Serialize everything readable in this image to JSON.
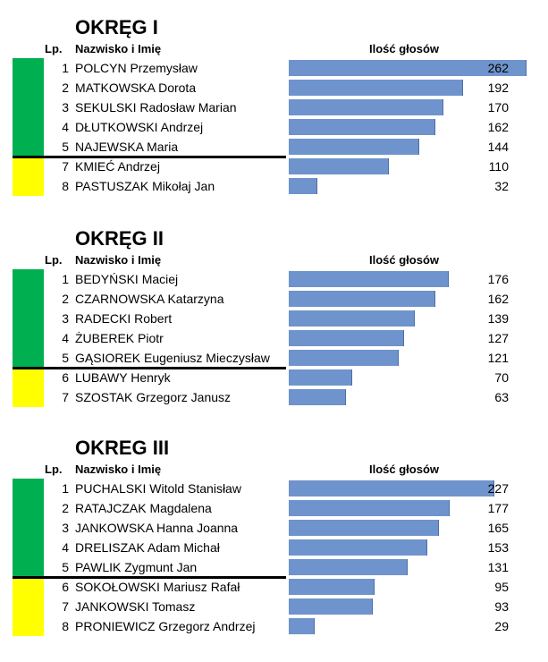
{
  "colors": {
    "elected": "#00b050",
    "not_elected": "#ffff00",
    "bar": "#6f93cc",
    "divider": "#000000"
  },
  "chart_data": [
    {
      "type": "bar",
      "orientation": "horizontal",
      "title": "OKRĘG I",
      "header": {
        "lp": "Lp.",
        "name": "Nazwisko i Imię",
        "votes": "Ilość głosów"
      },
      "xlim": [
        0,
        262
      ],
      "elected_count": 5,
      "rows": [
        {
          "lp": "1",
          "name": "POLCYN Przemysław",
          "value": 262,
          "elected": true
        },
        {
          "lp": "2",
          "name": "MATKOWSKA Dorota",
          "value": 192,
          "elected": true
        },
        {
          "lp": "3",
          "name": "SEKULSKI Radosław Marian",
          "value": 170,
          "elected": true
        },
        {
          "lp": "4",
          "name": "DŁUTKOWSKI Andrzej",
          "value": 162,
          "elected": true
        },
        {
          "lp": "5",
          "name": "NAJEWSKA Maria",
          "value": 144,
          "elected": true
        },
        {
          "lp": "7",
          "name": "KMIEĆ Andrzej",
          "value": 110,
          "elected": false
        },
        {
          "lp": "8",
          "name": "PASTUSZAK Mikołaj Jan",
          "value": 32,
          "elected": false
        }
      ]
    },
    {
      "type": "bar",
      "orientation": "horizontal",
      "title": "OKRĘG II",
      "header": {
        "lp": "Lp.",
        "name": "Nazwisko i Imię",
        "votes": "Ilość głosów"
      },
      "xlim": [
        0,
        262
      ],
      "elected_count": 5,
      "rows": [
        {
          "lp": "1",
          "name": "BEDYŃSKI Maciej",
          "value": 176,
          "elected": true
        },
        {
          "lp": "2",
          "name": "CZARNOWSKA Katarzyna",
          "value": 162,
          "elected": true
        },
        {
          "lp": "3",
          "name": "RADECKI Robert",
          "value": 139,
          "elected": true
        },
        {
          "lp": "4",
          "name": "ŻUBEREK Piotr",
          "value": 127,
          "elected": true
        },
        {
          "lp": "5",
          "name": "GĄSIOREK Eugeniusz Mieczysław",
          "value": 121,
          "elected": true
        },
        {
          "lp": "6",
          "name": "LUBAWY Henryk",
          "value": 70,
          "elected": false
        },
        {
          "lp": "7",
          "name": "SZOSTAK Grzegorz Janusz",
          "value": 63,
          "elected": false
        }
      ]
    },
    {
      "type": "bar",
      "orientation": "horizontal",
      "title": "OKREG III",
      "header": {
        "lp": "Lp.",
        "name": "Nazwisko i Imię",
        "votes": "Ilość głosów"
      },
      "xlim": [
        0,
        262
      ],
      "elected_count": 5,
      "rows": [
        {
          "lp": "1",
          "name": "PUCHALSKI Witold Stanisław",
          "value": 227,
          "elected": true
        },
        {
          "lp": "2",
          "name": "RATAJCZAK Magdalena",
          "value": 177,
          "elected": true
        },
        {
          "lp": "3",
          "name": "JANKOWSKA Hanna Joanna",
          "value": 165,
          "elected": true
        },
        {
          "lp": "4",
          "name": "DRELISZAK Adam Michał",
          "value": 153,
          "elected": true
        },
        {
          "lp": "5",
          "name": "PAWLIK Zygmunt Jan",
          "value": 131,
          "elected": true
        },
        {
          "lp": "6",
          "name": "SOKOŁOWSKI Mariusz Rafał",
          "value": 95,
          "elected": false
        },
        {
          "lp": "7",
          "name": "JANKOWSKI Tomasz",
          "value": 93,
          "elected": false
        },
        {
          "lp": "8",
          "name": "PRONIEWICZ Grzegorz Andrzej",
          "value": 29,
          "elected": false
        }
      ]
    }
  ]
}
